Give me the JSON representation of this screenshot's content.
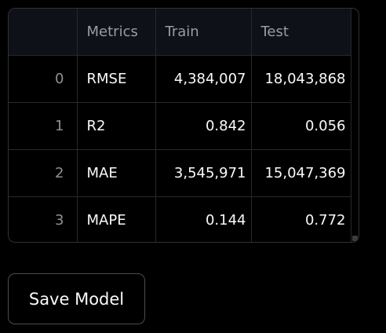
{
  "table": {
    "columns": [
      "",
      "Metrics",
      "Train",
      "Test"
    ],
    "rows": [
      {
        "index": "0",
        "metric": "RMSE",
        "train": "4,384,007",
        "test": "18,043,868"
      },
      {
        "index": "1",
        "metric": "R2",
        "train": "0.842",
        "test": "0.056"
      },
      {
        "index": "2",
        "metric": "MAE",
        "train": "3,545,971",
        "test": "15,047,369"
      },
      {
        "index": "3",
        "metric": "MAPE",
        "train": "0.144",
        "test": "0.772"
      }
    ]
  },
  "save_button": {
    "label": "Save Model"
  },
  "colors": {
    "background": "#000000",
    "header_background": "#0e1117",
    "text": "#fafafa",
    "muted_text": "#9a9ca1",
    "border": "#2f3136"
  }
}
